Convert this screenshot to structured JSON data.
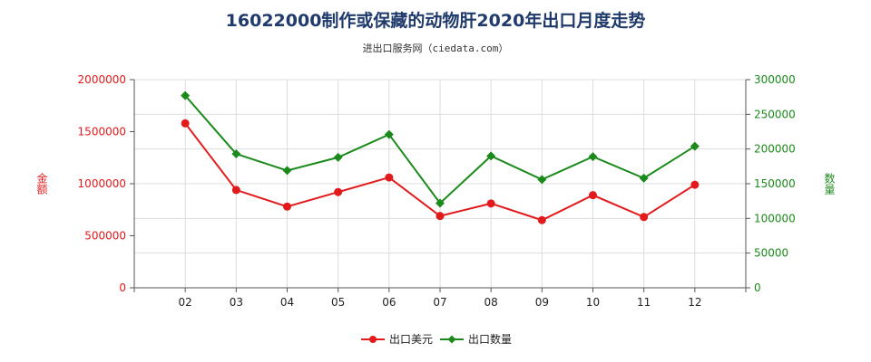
{
  "title": "16022000制作或保藏的动物肝2020年出口月度走势",
  "subtitle": "进出口服务网（ciedata.com）",
  "colors": {
    "usd": "#e31a1c",
    "qty": "#1a8a1a",
    "title": "#1f3a6b",
    "grid": "#dddddd"
  },
  "chart_data": {
    "type": "line",
    "title": "16022000制作或保藏的动物肝2020年出口月度走势",
    "subtitle": "进出口服务网（ciedata.com）",
    "categories": [
      "02",
      "03",
      "04",
      "05",
      "06",
      "07",
      "08",
      "09",
      "10",
      "11",
      "12"
    ],
    "y_left": {
      "label": "金额",
      "range": [
        0,
        2000000
      ],
      "ticks": [
        "0",
        "500000",
        "1000000",
        "1500000",
        "2000000"
      ]
    },
    "y_right": {
      "label": "数量",
      "range": [
        0,
        300000
      ],
      "ticks": [
        "0",
        "50000",
        "100000",
        "150000",
        "200000",
        "250000",
        "300000"
      ]
    },
    "series": [
      {
        "name": "出口美元",
        "axis": "left",
        "marker": "circle",
        "values": [
          1580000,
          940000,
          780000,
          920000,
          1060000,
          690000,
          810000,
          650000,
          890000,
          680000,
          990000
        ]
      },
      {
        "name": "出口数量",
        "axis": "right",
        "marker": "diamond",
        "values": [
          277000,
          193000,
          169000,
          188000,
          221000,
          122000,
          190000,
          156000,
          189000,
          158000,
          204000
        ]
      }
    ],
    "grid": true,
    "legend": "bottom-center"
  }
}
